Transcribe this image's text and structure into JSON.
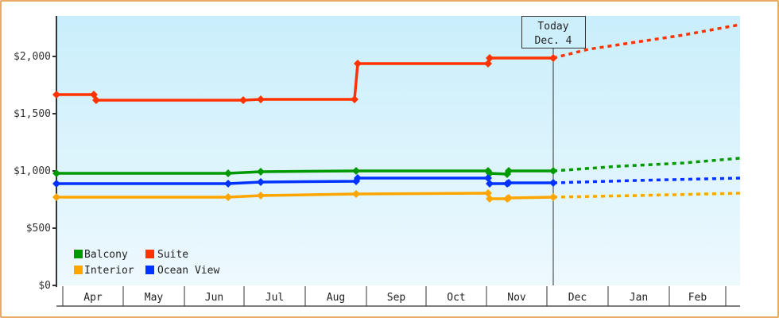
{
  "chart_data": {
    "type": "line",
    "title": "",
    "xlabel": "",
    "ylabel": "",
    "ylim": [
      0,
      2350
    ],
    "y_ticks": [
      {
        "value": 0,
        "label": "$0"
      },
      {
        "value": 500,
        "label": "$500"
      },
      {
        "value": 1000,
        "label": "$1,000"
      },
      {
        "value": 1500,
        "label": "$1,500"
      },
      {
        "value": 2000,
        "label": "$2,000"
      }
    ],
    "x_months": [
      "Apr",
      "May",
      "Jun",
      "Jul",
      "Aug",
      "Sep",
      "Oct",
      "Nov",
      "Dec",
      "Jan",
      "Feb"
    ],
    "today_marker": {
      "line1": "Today",
      "line2": "Dec. 4"
    },
    "legend": [
      {
        "name": "Balcony",
        "color": "#009900"
      },
      {
        "name": "Suite",
        "color": "#ff3300"
      },
      {
        "name": "Interior",
        "color": "#ffa500"
      },
      {
        "name": "Ocean View",
        "color": "#0033ff"
      }
    ],
    "series": [
      {
        "name": "Suite",
        "color": "#ff3300",
        "history": [
          [
            "Mar 29",
            1667
          ],
          [
            "Apr 17",
            1667
          ],
          [
            "Apr 18",
            1618
          ],
          [
            "Jun 29",
            1618
          ],
          [
            "Jul 7",
            1625
          ],
          [
            "Aug 21",
            1625
          ],
          [
            "Aug 22",
            1944
          ],
          [
            "Oct 26",
            1944
          ],
          [
            "Oct 27",
            1986
          ],
          [
            "Dec 4",
            1986
          ]
        ],
        "forecast": [
          [
            "Dec 4",
            1986
          ],
          [
            "Mar 1",
            2278
          ]
        ]
      },
      {
        "name": "Balcony",
        "color": "#009900",
        "history": [
          [
            "Mar 29",
            979
          ],
          [
            "Jun 22",
            979
          ],
          [
            "Jul 7",
            993
          ],
          [
            "Aug 22",
            1000
          ],
          [
            "Oct 26",
            1000
          ],
          [
            "Oct 27",
            979
          ],
          [
            "Nov 4",
            979
          ],
          [
            "Nov 5",
            1000
          ],
          [
            "Dec 4",
            1000
          ]
        ],
        "forecast": [
          [
            "Dec 4",
            1000
          ],
          [
            "Mar 1",
            1111
          ]
        ]
      },
      {
        "name": "Ocean View",
        "color": "#0033ff",
        "history": [
          [
            "Mar 29",
            889
          ],
          [
            "Jun 22",
            889
          ],
          [
            "Jul 7",
            903
          ],
          [
            "Aug 21",
            903
          ],
          [
            "Aug 22",
            938
          ],
          [
            "Oct 26",
            938
          ],
          [
            "Oct 27",
            889
          ],
          [
            "Nov 4",
            889
          ],
          [
            "Nov 5",
            896
          ],
          [
            "Dec 4",
            896
          ]
        ],
        "forecast": [
          [
            "Dec 4",
            896
          ],
          [
            "Mar 1",
            938
          ]
        ]
      },
      {
        "name": "Interior",
        "color": "#ffa500",
        "history": [
          [
            "Mar 29",
            771
          ],
          [
            "Jun 22",
            771
          ],
          [
            "Jul 7",
            785
          ],
          [
            "Aug 22",
            799
          ],
          [
            "Oct 26",
            806
          ],
          [
            "Oct 27",
            757
          ],
          [
            "Nov 4",
            757
          ],
          [
            "Nov 5",
            764
          ],
          [
            "Dec 4",
            771
          ]
        ],
        "forecast": [
          [
            "Dec 4",
            771
          ],
          [
            "Mar 1",
            806
          ]
        ]
      }
    ]
  },
  "plot": {
    "series_pixels": [
      {
        "name": "Suite",
        "color": "#ff3300",
        "solid": [
          [
            71,
            119
          ],
          [
            118,
            119
          ],
          [
            121,
            126
          ],
          [
            306,
            126
          ],
          [
            328,
            125
          ],
          [
            446,
            125
          ],
          [
            450,
            80
          ],
          [
            614,
            80
          ],
          [
            616,
            73
          ],
          [
            696,
            73
          ]
        ],
        "markers": [
          [
            71,
            119
          ],
          [
            118,
            119
          ],
          [
            121,
            126
          ],
          [
            306,
            126
          ],
          [
            328,
            125
          ],
          [
            446,
            125
          ],
          [
            450,
            80
          ],
          [
            614,
            80
          ],
          [
            616,
            73
          ],
          [
            696,
            73
          ]
        ],
        "dashed": [
          [
            696,
            73
          ],
          [
            740,
            62
          ],
          [
            800,
            53
          ],
          [
            860,
            44
          ],
          [
            931,
            31
          ]
        ]
      },
      {
        "name": "Balcony",
        "color": "#009900",
        "solid": [
          [
            71,
            218
          ],
          [
            287,
            218
          ],
          [
            328,
            216
          ],
          [
            448,
            215
          ],
          [
            614,
            215
          ],
          [
            616,
            218
          ],
          [
            638,
            219
          ],
          [
            640,
            215
          ],
          [
            696,
            215
          ]
        ],
        "markers": [
          [
            71,
            218
          ],
          [
            287,
            218
          ],
          [
            328,
            216
          ],
          [
            448,
            215
          ],
          [
            614,
            215
          ],
          [
            616,
            218
          ],
          [
            638,
            219
          ],
          [
            640,
            215
          ],
          [
            696,
            215
          ]
        ],
        "dashed": [
          [
            696,
            215
          ],
          [
            780,
            209
          ],
          [
            860,
            205
          ],
          [
            931,
            199
          ]
        ]
      },
      {
        "name": "Ocean View",
        "color": "#0033ff",
        "solid": [
          [
            71,
            231
          ],
          [
            287,
            231
          ],
          [
            328,
            229
          ],
          [
            448,
            228
          ],
          [
            450,
            224
          ],
          [
            614,
            224
          ],
          [
            616,
            231
          ],
          [
            638,
            231
          ],
          [
            640,
            230
          ],
          [
            696,
            230
          ]
        ],
        "markers": [
          [
            71,
            231
          ],
          [
            287,
            231
          ],
          [
            328,
            229
          ],
          [
            448,
            228
          ],
          [
            450,
            224
          ],
          [
            614,
            224
          ],
          [
            616,
            231
          ],
          [
            638,
            231
          ],
          [
            640,
            230
          ],
          [
            696,
            230
          ]
        ],
        "dashed": [
          [
            696,
            230
          ],
          [
            800,
            227
          ],
          [
            931,
            224
          ]
        ]
      },
      {
        "name": "Interior",
        "color": "#ffa500",
        "solid": [
          [
            71,
            248
          ],
          [
            287,
            248
          ],
          [
            328,
            246
          ],
          [
            448,
            244
          ],
          [
            614,
            243
          ],
          [
            616,
            250
          ],
          [
            638,
            250
          ],
          [
            640,
            249
          ],
          [
            696,
            248
          ]
        ],
        "markers": [
          [
            71,
            248
          ],
          [
            287,
            248
          ],
          [
            328,
            246
          ],
          [
            448,
            244
          ],
          [
            614,
            243
          ],
          [
            616,
            250
          ],
          [
            638,
            250
          ],
          [
            640,
            249
          ],
          [
            696,
            248
          ]
        ],
        "dashed": [
          [
            696,
            248
          ],
          [
            800,
            246
          ],
          [
            931,
            243
          ]
        ]
      }
    ]
  }
}
